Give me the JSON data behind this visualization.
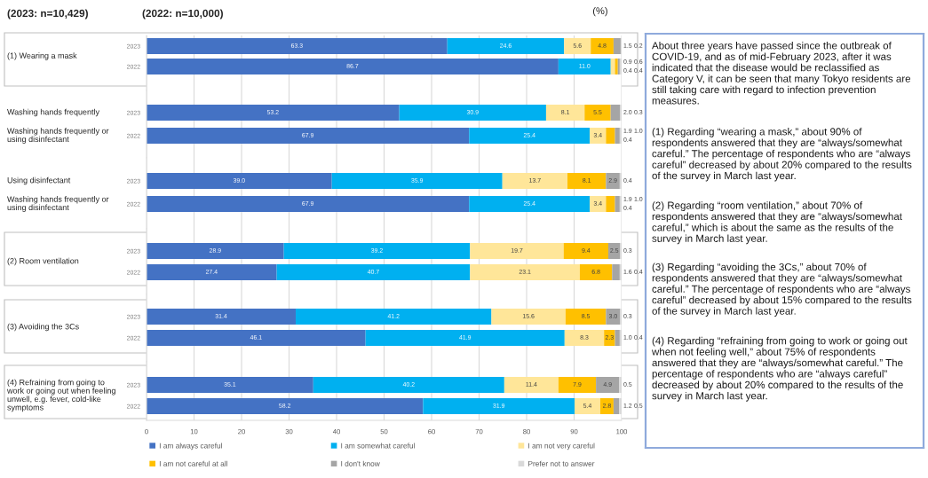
{
  "chart_data": [
    {
      "type": "bar",
      "orientation": "horizontal",
      "stacked": true,
      "categories": [
        "2023",
        "2022"
      ],
      "title": "(2023: n=10,429)",
      "subtitle": "(2022: n=10,000)",
      "ylabel": "(1) Wearing a mask",
      "xlabel": "(%)",
      "xlim": [
        0,
        100
      ],
      "xticks": [
        0,
        10,
        20,
        30,
        40,
        50,
        60,
        70,
        80,
        90,
        100
      ],
      "grid": "x",
      "tick_labels": "y",
      "series": [
        {
          "color": "#4472c4",
          "values": [
            63.3,
            86.7
          ],
          "value_labels": [
            "63.3",
            "86.7"
          ]
        },
        {
          "color": "#00b0f0",
          "values": [
            24.6,
            11.0
          ],
          "value_labels": [
            "24.6",
            "11.0"
          ]
        },
        {
          "color": "#ffe699",
          "values": [
            5.6,
            0.9
          ],
          "value_labels": [
            "5.6",
            "0.9"
          ]
        },
        {
          "color": "#ffc000",
          "values": [
            4.8,
            0.6
          ],
          "value_labels": [
            "4.8",
            "0.6"
          ]
        },
        {
          "color": "#a5a5a5",
          "values": [
            1.5,
            0.4
          ],
          "value_labels": [
            "1.5",
            "0.4"
          ]
        },
        {
          "color": "#d9d9d9",
          "values": [
            0.2,
            0.4
          ],
          "value_labels": [
            "0.2",
            "0.4"
          ]
        }
      ]
    },
    {
      "type": "bar",
      "orientation": "horizontal",
      "stacked": true,
      "categories": [
        "2023",
        "2022"
      ],
      "xlim": [
        0,
        100
      ],
      "xticks": [
        0,
        10,
        20,
        30,
        40,
        50,
        60,
        70,
        80,
        90,
        100
      ],
      "grid": "x",
      "tick_labels": "y",
      "annotations": [
        "Washing hands frequently",
        "Washing hands frequently or using disinfectant"
      ],
      "series": [
        {
          "color": "#4472c4",
          "values": [
            53.2,
            67.9
          ],
          "value_labels": [
            "53.2",
            "67.9"
          ]
        },
        {
          "color": "#00b0f0",
          "values": [
            30.9,
            25.4
          ],
          "value_labels": [
            "30.9",
            "25.4"
          ]
        },
        {
          "color": "#ffe699",
          "values": [
            8.1,
            3.4
          ],
          "value_labels": [
            "8.1",
            "3.4"
          ]
        },
        {
          "color": "#ffc000",
          "values": [
            5.5,
            1.9
          ],
          "value_labels": [
            "5.5",
            "1.9"
          ]
        },
        {
          "color": "#a5a5a5",
          "values": [
            2.0,
            1.0
          ],
          "value_labels": [
            "2.0",
            "1.0"
          ]
        },
        {
          "color": "#d9d9d9",
          "values": [
            0.3,
            0.4
          ],
          "value_labels": [
            "0.3",
            "0.4"
          ]
        }
      ]
    },
    {
      "type": "bar",
      "orientation": "horizontal",
      "stacked": true,
      "categories": [
        "2023",
        "2022"
      ],
      "xlim": [
        0,
        100
      ],
      "xticks": [
        0,
        10,
        20,
        30,
        40,
        50,
        60,
        70,
        80,
        90,
        100
      ],
      "grid": "x",
      "tick_labels": "y",
      "annotations": [
        "Using disinfectant",
        "Washing hands frequently or using disinfectant"
      ],
      "series": [
        {
          "color": "#4472c4",
          "values": [
            39.0,
            67.9
          ],
          "value_labels": [
            "39.0",
            "67.9"
          ]
        },
        {
          "color": "#00b0f0",
          "values": [
            35.9,
            25.4
          ],
          "value_labels": [
            "35.9",
            "25.4"
          ]
        },
        {
          "color": "#ffe699",
          "values": [
            13.7,
            3.4
          ],
          "value_labels": [
            "13.7",
            "3.4"
          ]
        },
        {
          "color": "#ffc000",
          "values": [
            8.1,
            1.9
          ],
          "value_labels": [
            "8.1",
            "1.9"
          ]
        },
        {
          "color": "#a5a5a5",
          "values": [
            2.9,
            1.0
          ],
          "value_labels": [
            "2.9",
            "1.0"
          ]
        },
        {
          "color": "#d9d9d9",
          "values": [
            0.4,
            0.4
          ],
          "value_labels": [
            "0.4",
            "0.4"
          ]
        }
      ]
    },
    {
      "type": "bar",
      "orientation": "horizontal",
      "stacked": true,
      "categories": [
        "2023",
        "2022"
      ],
      "ylabel": "(2) Room ventilation",
      "xlim": [
        0,
        100
      ],
      "xticks": [
        0,
        10,
        20,
        30,
        40,
        50,
        60,
        70,
        80,
        90,
        100
      ],
      "grid": "x",
      "tick_labels": "y",
      "series": [
        {
          "color": "#4472c4",
          "values": [
            28.9,
            27.4
          ],
          "value_labels": [
            "28.9",
            "27.4"
          ]
        },
        {
          "color": "#00b0f0",
          "values": [
            39.2,
            40.7
          ],
          "value_labels": [
            "39.2",
            "40.7"
          ]
        },
        {
          "color": "#ffe699",
          "values": [
            19.7,
            23.1
          ],
          "value_labels": [
            "19.7",
            "23.1"
          ]
        },
        {
          "color": "#ffc000",
          "values": [
            9.4,
            6.8
          ],
          "value_labels": [
            "9.4",
            "6.8"
          ]
        },
        {
          "color": "#a5a5a5",
          "values": [
            2.5,
            1.6
          ],
          "value_labels": [
            "2.5",
            "1.6"
          ]
        },
        {
          "color": "#d9d9d9",
          "values": [
            0.3,
            0.4
          ],
          "value_labels": [
            "0.3",
            "0.4"
          ]
        }
      ]
    },
    {
      "type": "bar",
      "orientation": "horizontal",
      "stacked": true,
      "categories": [
        "2023",
        "2022"
      ],
      "ylabel": "(3) Avoiding the 3Cs",
      "xlim": [
        0,
        100
      ],
      "xticks": [
        0,
        10,
        20,
        30,
        40,
        50,
        60,
        70,
        80,
        90,
        100
      ],
      "grid": "x",
      "tick_labels": "y",
      "series": [
        {
          "color": "#4472c4",
          "values": [
            31.4,
            46.1
          ],
          "value_labels": [
            "31.4",
            "46.1"
          ]
        },
        {
          "color": "#00b0f0",
          "values": [
            41.2,
            41.9
          ],
          "value_labels": [
            "41.2",
            "41.9"
          ]
        },
        {
          "color": "#ffe699",
          "values": [
            15.6,
            8.3
          ],
          "value_labels": [
            "15.6",
            "8.3"
          ]
        },
        {
          "color": "#ffc000",
          "values": [
            8.5,
            2.3
          ],
          "value_labels": [
            "8.5",
            "2.3"
          ]
        },
        {
          "color": "#a5a5a5",
          "values": [
            3.0,
            1.0
          ],
          "value_labels": [
            "3.0",
            "1.0"
          ]
        },
        {
          "color": "#d9d9d9",
          "values": [
            0.3,
            0.4
          ],
          "value_labels": [
            "0.3",
            "0.4"
          ]
        }
      ]
    },
    {
      "type": "bar",
      "orientation": "horizontal",
      "stacked": true,
      "categories": [
        "2023",
        "2022"
      ],
      "ylabel": "(4) Refraining from going to work or going out when feeling unwell, e.g. fever, cold-like symptoms",
      "xlim": [
        0,
        100
      ],
      "xticks": [
        0,
        10,
        20,
        30,
        40,
        50,
        60,
        70,
        80,
        90,
        100
      ],
      "grid": "x",
      "legend": "bottom",
      "series": [
        {
          "name": "I am always careful",
          "color": "#4472c4",
          "values": [
            35.1,
            58.2
          ],
          "value_labels": [
            "35.1",
            "58.2"
          ]
        },
        {
          "name": "I am somewhat careful",
          "color": "#00b0f0",
          "values": [
            40.2,
            31.9
          ],
          "value_labels": [
            "40.2",
            "31.9"
          ]
        },
        {
          "name": "I am not very careful",
          "color": "#ffe699",
          "values": [
            11.4,
            5.4
          ],
          "value_labels": [
            "11.4",
            "5.4"
          ]
        },
        {
          "name": "I am not careful at all",
          "color": "#ffc000",
          "values": [
            7.9,
            2.8
          ],
          "value_labels": [
            "7.9",
            "2.8"
          ]
        },
        {
          "name": "I don't know",
          "color": "#a5a5a5",
          "values": [
            4.9,
            1.2
          ],
          "value_labels": [
            "4.9",
            "1.2"
          ]
        },
        {
          "name": "Prefer not to answer",
          "color": "#d9d9d9",
          "values": [
            0.5,
            0.5
          ],
          "value_labels": [
            "0.5",
            "0.5"
          ]
        }
      ]
    },
    {
      "type": "other",
      "annotations": [
        "About three years have passed since the outbreak of COVID-19, and as of mid-February 2023, after it was indicated that the disease would be reclassified as Category V, it can be seen that many Tokyo residents are still taking care with regard to infection prevention measures.",
        "(1) Regarding “wearing a mask,” about 90% of respondents answered that they are “always/somewhat careful.” The percentage of respondents who are “always careful” decreased by about 20% compared to the results of the survey in March last year.",
        "(2) Regarding “room ventilation,” about 70% of respondents answered that they are “always/somewhat careful,” which is about the same as the results of the survey in March last year.",
        "(3) Regarding “avoiding the 3Cs,” about 70% of respondents answered that they are “always/somewhat careful.” The percentage of respondents who are “always careful” decreased by about 15% compared to the results of the survey in March last year.",
        "(4) Regarding “refraining from going to work or going out when not feeling well,” about 75% of respondents answered that they are “always/somewhat careful.” The percentage of respondents who are “always careful” decreased by about 20% compared to the results of the survey in March last year."
      ]
    }
  ]
}
